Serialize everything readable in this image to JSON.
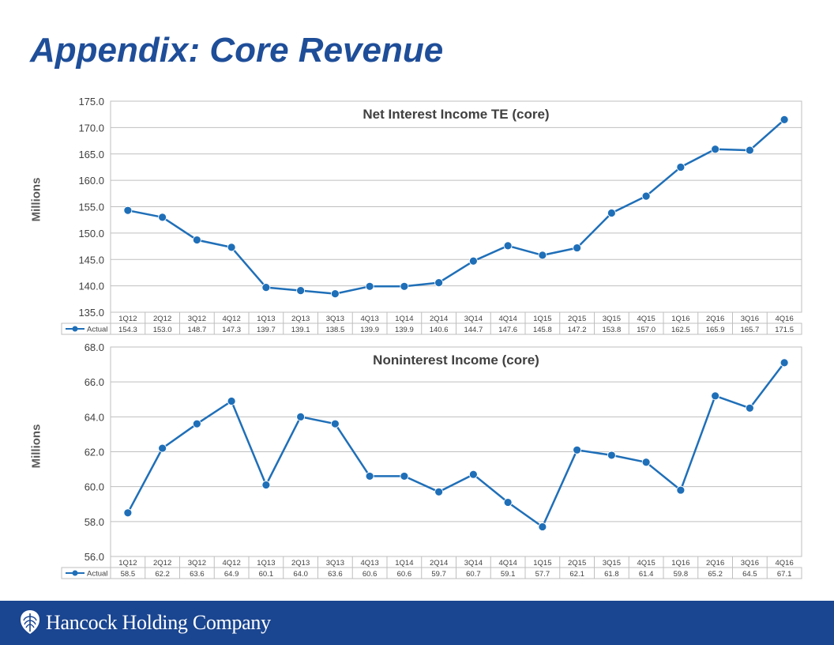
{
  "page": {
    "title": "Appendix: Core Revenue",
    "footer": {
      "company": "Hancock Holding Company",
      "logo_icon": "hancock-shield-icon"
    }
  },
  "colors": {
    "series": "#1f6fb8",
    "grid": "#bfbfbf",
    "title": "#1f4e99",
    "footer": "#1a4590"
  },
  "chart_data": [
    {
      "type": "line",
      "title": "Net Interest Income TE (core)",
      "ylabel": "Millions",
      "ylim": [
        135.0,
        175.0
      ],
      "yticks": [
        "135.0",
        "140.0",
        "145.0",
        "150.0",
        "155.0",
        "160.0",
        "165.0",
        "170.0",
        "175.0"
      ],
      "categories": [
        "1Q12",
        "2Q12",
        "3Q12",
        "4Q12",
        "1Q13",
        "2Q13",
        "3Q13",
        "4Q13",
        "1Q14",
        "2Q14",
        "3Q14",
        "4Q14",
        "1Q15",
        "2Q15",
        "3Q15",
        "4Q15",
        "1Q16",
        "2Q16",
        "3Q16",
        "4Q16"
      ],
      "series": [
        {
          "name": "Actual",
          "values": [
            154.3,
            153.0,
            148.7,
            147.3,
            139.7,
            139.1,
            138.5,
            139.9,
            139.9,
            140.6,
            144.7,
            147.6,
            145.8,
            147.2,
            153.8,
            157.0,
            162.5,
            165.9,
            165.7,
            171.5
          ]
        }
      ],
      "table_values": [
        "154.3",
        "153.0",
        "148.7",
        "147.3",
        "139.7",
        "139.1",
        "138.5",
        "139.9",
        "139.9",
        "140.6",
        "144.7",
        "147.6",
        "145.8",
        "147.2",
        "153.8",
        "157.0",
        "162.5",
        "165.9",
        "165.7",
        "171.5"
      ],
      "grid": true,
      "legend": "data-table"
    },
    {
      "type": "line",
      "title": "Noninterest Income (core)",
      "ylabel": "Millions",
      "ylim": [
        56.0,
        68.0
      ],
      "yticks": [
        "56.0",
        "58.0",
        "60.0",
        "62.0",
        "64.0",
        "66.0",
        "68.0"
      ],
      "categories": [
        "1Q12",
        "2Q12",
        "3Q12",
        "4Q12",
        "1Q13",
        "2Q13",
        "3Q13",
        "4Q13",
        "1Q14",
        "2Q14",
        "3Q14",
        "4Q14",
        "1Q15",
        "2Q15",
        "3Q15",
        "4Q15",
        "1Q16",
        "2Q16",
        "3Q16",
        "4Q16"
      ],
      "series": [
        {
          "name": "Actual",
          "values": [
            58.5,
            62.2,
            63.6,
            64.9,
            60.1,
            64.0,
            63.6,
            60.6,
            60.6,
            59.7,
            60.7,
            59.1,
            57.7,
            62.1,
            61.8,
            61.4,
            59.8,
            65.2,
            64.5,
            67.1
          ]
        }
      ],
      "table_values": [
        "58.5",
        "62.2",
        "63.6",
        "64.9",
        "60.1",
        "64.0",
        "63.6",
        "60.6",
        "60.6",
        "59.7",
        "60.7",
        "59.1",
        "57.7",
        "62.1",
        "61.8",
        "61.4",
        "59.8",
        "65.2",
        "64.5",
        "67.1"
      ],
      "grid": true,
      "legend": "data-table"
    }
  ]
}
